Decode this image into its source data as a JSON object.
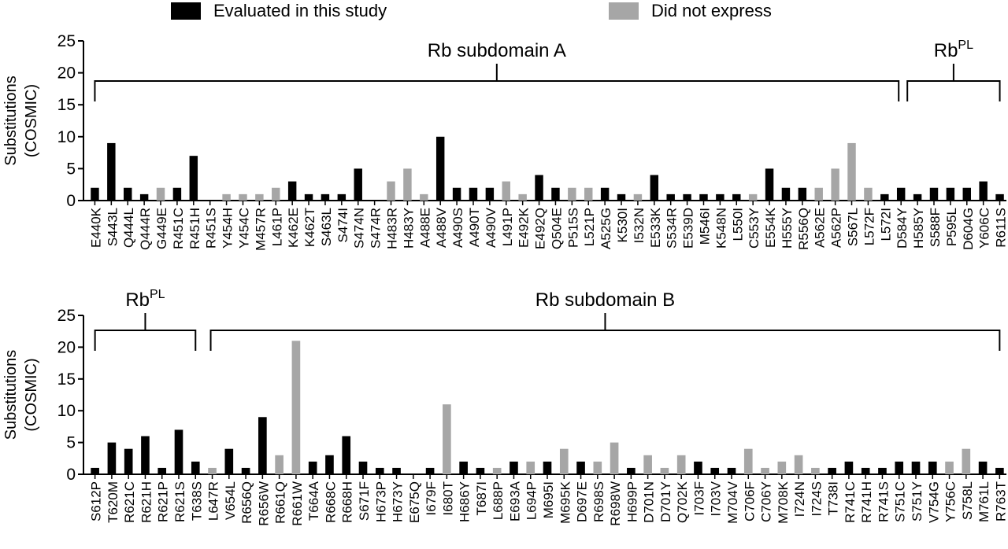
{
  "legend": [
    {
      "label": "Evaluated in this study",
      "color": "#000000"
    },
    {
      "label": "Did not express",
      "color": "#a6a6a6"
    }
  ],
  "colors": {
    "evaluated": "#000000",
    "not_expressed": "#a6a6a6",
    "axis": "#000000"
  },
  "chart_data": [
    {
      "type": "bar",
      "ylabel": [
        "Substitutions",
        "(COSMIC)"
      ],
      "ylim": [
        0,
        25
      ],
      "yticks": [
        0,
        5,
        10,
        15,
        20,
        25
      ],
      "categories": [
        "E440K",
        "S443L",
        "Q444L",
        "Q444R",
        "G449E",
        "R451C",
        "R451H",
        "R451S",
        "Y454H",
        "Y454C",
        "M457R",
        "L461P",
        "K462E",
        "K462T",
        "S463L",
        "S474I",
        "S474N",
        "S474R",
        "H483R",
        "H483Y",
        "A488E",
        "A488V",
        "A490S",
        "A490T",
        "A490V",
        "L491P",
        "E492K",
        "E492Q",
        "Q504E",
        "P515S",
        "L521P",
        "A525G",
        "K530I",
        "I532N",
        "E533K",
        "S534R",
        "E539D",
        "M546I",
        "K548N",
        "L550I",
        "C553Y",
        "E554K",
        "H555Y",
        "R556Q",
        "A562E",
        "A562P",
        "S567L",
        "L572F",
        "L572I",
        "D584Y",
        "H585Y",
        "S588F",
        "P595L",
        "D604G",
        "Y606C",
        "R611S"
      ],
      "series": [
        {
          "name": "Evaluated in this study",
          "values": [
            2,
            9,
            2,
            1,
            0,
            2,
            7,
            0,
            0,
            0,
            0,
            0,
            3,
            1,
            1,
            1,
            5,
            0,
            0,
            0,
            0,
            10,
            2,
            2,
            2,
            0,
            0,
            4,
            2,
            0,
            0,
            2,
            1,
            0,
            4,
            1,
            1,
            1,
            1,
            1,
            0,
            5,
            2,
            2,
            0,
            0,
            0,
            0,
            1,
            2,
            1,
            2,
            2,
            2,
            3,
            1
          ]
        },
        {
          "name": "Did not express",
          "values": [
            0,
            0,
            0,
            0,
            2,
            0,
            0,
            0,
            1,
            1,
            1,
            2,
            0,
            0,
            0,
            0,
            0,
            0,
            3,
            5,
            1,
            0,
            0,
            0,
            0,
            3,
            1,
            0,
            0,
            2,
            2,
            0,
            0,
            1,
            0,
            0,
            0,
            0,
            0,
            0,
            1,
            0,
            0,
            0,
            2,
            5,
            9,
            2,
            0,
            0,
            0,
            0,
            0,
            0,
            0,
            0
          ]
        }
      ],
      "annotations": [
        {
          "text": "Rb subdomain A",
          "superscript": "",
          "from": "E440K",
          "to": "D584Y"
        },
        {
          "text": "Rb",
          "superscript": "PL",
          "from": "D584Y",
          "to": "R611S"
        }
      ]
    },
    {
      "type": "bar",
      "ylabel": [
        "Substitutions",
        "(COSMIC)"
      ],
      "ylim": [
        0,
        25
      ],
      "yticks": [
        0,
        5,
        10,
        15,
        20,
        25
      ],
      "categories": [
        "S612P",
        "T620M",
        "R621C",
        "R621H",
        "R621P",
        "R621S",
        "T638S",
        "L647R",
        "V654L",
        "R656Q",
        "R656W",
        "R661Q",
        "R661W",
        "T664A",
        "R668C",
        "R668H",
        "S671F",
        "H673P",
        "H673Y",
        "E675Q",
        "I679F",
        "I680T",
        "H686Y",
        "T687I",
        "L688P",
        "E693A",
        "L694P",
        "M695I",
        "M695K",
        "D697E",
        "R698S",
        "R698W",
        "H699P",
        "D701N",
        "D701Y",
        "Q702K",
        "I703F",
        "I703V",
        "M704V",
        "C706F",
        "C706Y",
        "M708K",
        "I724N",
        "I724S",
        "T738I",
        "R741C",
        "R741H",
        "R741S",
        "S751C",
        "S751Y",
        "V754G",
        "Y756C",
        "S758L",
        "M761L",
        "R763T"
      ],
      "series": [
        {
          "name": "Evaluated in this study",
          "values": [
            1,
            5,
            4,
            6,
            1,
            7,
            2,
            0,
            4,
            1,
            9,
            0,
            0,
            2,
            3,
            6,
            2,
            1,
            1,
            0,
            1,
            0,
            2,
            1,
            0,
            2,
            0,
            2,
            0,
            2,
            0,
            0,
            1,
            0,
            0,
            0,
            2,
            1,
            1,
            0,
            0,
            0,
            0,
            0,
            1,
            2,
            1,
            1,
            2,
            2,
            2,
            0,
            0,
            2,
            1
          ]
        },
        {
          "name": "Did not express",
          "values": [
            0,
            0,
            0,
            0,
            0,
            0,
            0,
            1,
            0,
            0,
            0,
            3,
            21,
            0,
            0,
            0,
            0,
            0,
            0,
            0,
            0,
            11,
            0,
            0,
            1,
            0,
            2,
            0,
            4,
            0,
            2,
            5,
            0,
            3,
            1,
            3,
            0,
            0,
            0,
            4,
            1,
            2,
            3,
            1,
            0,
            0,
            0,
            0,
            0,
            0,
            0,
            2,
            4,
            0,
            0
          ]
        }
      ],
      "annotations": [
        {
          "text": "Rb",
          "superscript": "PL",
          "from": "S612P",
          "to": "T638S"
        },
        {
          "text": "Rb subdomain B",
          "superscript": "",
          "from": "L647R",
          "to": "R763T"
        }
      ]
    }
  ]
}
